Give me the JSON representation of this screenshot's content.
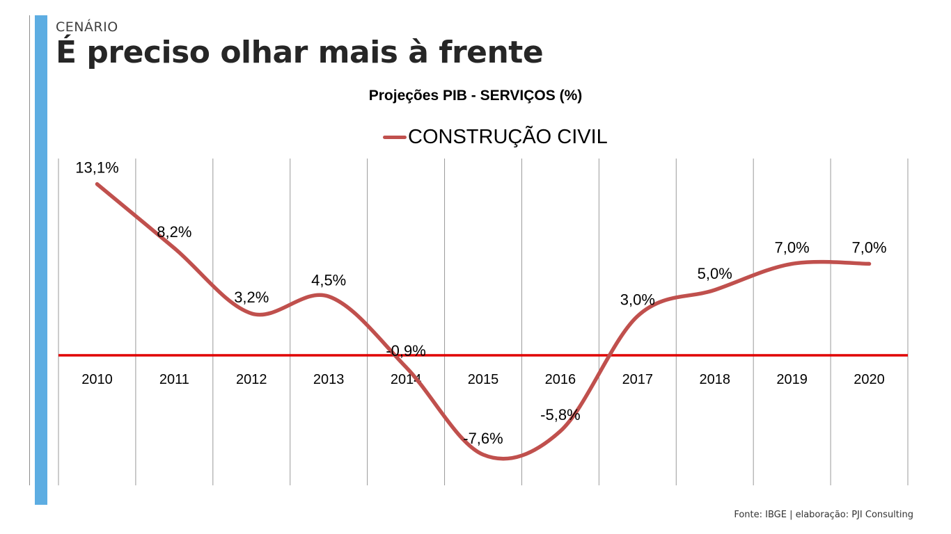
{
  "header": {
    "section": "CENÁRIO",
    "title": "É preciso olhar mais à frente"
  },
  "footer": {
    "source": "Fonte: IBGE  |  elaboração: PJI Consulting"
  },
  "colors": {
    "series": "#c0504d",
    "zero_line": "#e00000",
    "accent_bar": "#5dade2",
    "gridline": "#999999"
  },
  "chart_data": {
    "type": "line",
    "title": "Projeções PIB - SERVIÇOS (%)",
    "legend_position": "top",
    "categories": [
      "2010",
      "2011",
      "2012",
      "2013",
      "2014",
      "2015",
      "2016",
      "2017",
      "2018",
      "2019",
      "2020"
    ],
    "series": [
      {
        "name": "CONSTRUÇÃO CIVIL",
        "values": [
          13.1,
          8.2,
          3.2,
          4.5,
          -0.9,
          -7.6,
          -5.8,
          3.0,
          5.0,
          7.0,
          7.0
        ],
        "labels": [
          "13,1%",
          "8,2%",
          "3,2%",
          "4,5%",
          "-0,9%",
          "-7,6%",
          "-5,8%",
          "3,0%",
          "5,0%",
          "7,0%",
          "7,0%"
        ]
      }
    ],
    "ylim": [
      -10,
      15
    ],
    "smooth": true,
    "vertical_gridlines": true,
    "zero_line": true
  }
}
